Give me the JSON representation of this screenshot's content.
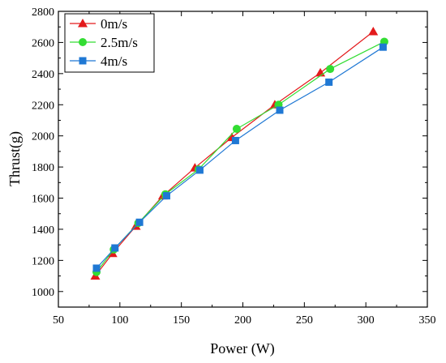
{
  "chart_data": {
    "type": "line",
    "xlabel": "Power (W)",
    "ylabel": "Thrust(g)",
    "xlim": [
      50,
      350
    ],
    "ylim": [
      900,
      2800
    ],
    "xticks": [
      50,
      100,
      150,
      200,
      250,
      300,
      350
    ],
    "yticks": [
      1000,
      1200,
      1400,
      1600,
      1800,
      2000,
      2200,
      2400,
      2600,
      2800
    ],
    "grid": false,
    "legend": "top-left",
    "series": [
      {
        "name": "0m/s",
        "color": "#e31a1c",
        "marker": "triangle",
        "points": [
          [
            80,
            1100
          ],
          [
            94,
            1245
          ],
          [
            113,
            1420
          ],
          [
            135,
            1615
          ],
          [
            161,
            1795
          ],
          [
            191,
            1990
          ],
          [
            226,
            2200
          ],
          [
            263,
            2405
          ],
          [
            306,
            2670
          ]
        ]
      },
      {
        "name": "2.5m/s",
        "color": "#33dd33",
        "marker": "circle",
        "points": [
          [
            81,
            1125
          ],
          [
            95,
            1270
          ],
          [
            115,
            1440
          ],
          [
            137,
            1625
          ],
          [
            164,
            1785
          ],
          [
            195,
            2045
          ],
          [
            229,
            2200
          ],
          [
            271,
            2430
          ],
          [
            315,
            2605
          ]
        ]
      },
      {
        "name": "4m/s",
        "color": "#1f78d4",
        "marker": "square",
        "points": [
          [
            81,
            1150
          ],
          [
            96,
            1280
          ],
          [
            116,
            1445
          ],
          [
            138,
            1615
          ],
          [
            165,
            1780
          ],
          [
            194,
            1970
          ],
          [
            230,
            2165
          ],
          [
            270,
            2345
          ],
          [
            314,
            2570
          ]
        ]
      }
    ]
  }
}
